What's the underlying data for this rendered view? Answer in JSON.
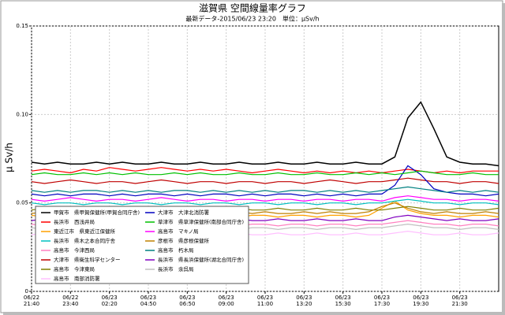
{
  "chart_data": {
    "type": "line",
    "title": "滋賀県 空間線量率グラフ",
    "subtitle": "最新データ-2015/06/23 23:20　単位：μSv/h",
    "y_label": "μ Sv/h",
    "categories": [
      "06/22\n21:40",
      null,
      null,
      "06/22\n23:40",
      null,
      null,
      "06/23\n02:20",
      null,
      null,
      "06/23\n04:50",
      null,
      null,
      "06/23\n06:50",
      null,
      null,
      "06/23\n09:00",
      null,
      null,
      "06/23\n11:00",
      null,
      null,
      "06/23\n13:20",
      null,
      null,
      "06/23\n15:30",
      null,
      null,
      "06/23\n17:30",
      null,
      null,
      "06/23\n19:30",
      null,
      null,
      "06/23\n21:30",
      null,
      null,
      null
    ],
    "ylim": [
      0,
      0.15
    ],
    "yticks": [
      0,
      0.05,
      {
        "value": 0.1,
        "label": "0.10"
      },
      0.15
    ],
    "grid": true,
    "series": [
      {
        "name": "甲賀市　県甲賀保健所(甲賀合同庁舎)",
        "color": "#000000",
        "values": [
          0.073,
          0.072,
          0.073,
          0.072,
          0.072,
          0.073,
          0.072,
          0.073,
          0.072,
          0.072,
          0.073,
          0.072,
          0.072,
          0.073,
          0.072,
          0.072,
          0.073,
          0.072,
          0.072,
          0.073,
          0.072,
          0.072,
          0.073,
          0.072,
          0.072,
          0.073,
          0.072,
          0.072,
          0.076,
          0.098,
          0.107,
          0.092,
          0.076,
          0.073,
          0.072,
          0.072,
          0.071
        ]
      },
      {
        "name": "長浜市　西浅井局",
        "color": "#ff0000",
        "values": [
          0.068,
          0.069,
          0.068,
          0.067,
          0.069,
          0.068,
          0.07,
          0.069,
          0.068,
          0.069,
          0.07,
          0.069,
          0.068,
          0.069,
          0.068,
          0.069,
          0.068,
          0.067,
          0.068,
          0.069,
          0.068,
          0.067,
          0.068,
          0.067,
          0.068,
          0.067,
          0.068,
          0.067,
          0.068,
          0.069,
          0.068,
          0.067,
          0.068,
          0.067,
          0.068,
          0.068,
          0.068
        ]
      },
      {
        "name": "東近江市　県東近江保健所",
        "color": "#ffa000",
        "values": [
          0.043,
          0.042,
          0.043,
          0.043,
          0.042,
          0.043,
          0.043,
          0.042,
          0.043,
          0.043,
          0.042,
          0.043,
          0.043,
          0.042,
          0.043,
          0.043,
          0.042,
          0.043,
          0.043,
          0.042,
          0.043,
          0.043,
          0.042,
          0.043,
          0.043,
          0.042,
          0.043,
          0.047,
          0.051,
          0.046,
          0.044,
          0.043,
          0.043,
          0.042,
          0.043,
          0.043,
          0.042
        ]
      },
      {
        "name": "長浜市　県木之本合同庁舎",
        "color": "#00c0c0",
        "values": [
          0.05,
          0.049,
          0.05,
          0.05,
          0.049,
          0.05,
          0.05,
          0.049,
          0.05,
          0.05,
          0.049,
          0.05,
          0.05,
          0.049,
          0.05,
          0.05,
          0.049,
          0.05,
          0.05,
          0.049,
          0.05,
          0.05,
          0.049,
          0.05,
          0.05,
          0.049,
          0.05,
          0.05,
          0.051,
          0.052,
          0.051,
          0.05,
          0.05,
          0.049,
          0.05,
          0.05,
          0.049
        ]
      },
      {
        "name": "高島市　今津西局",
        "color": "#ff80c0",
        "values": [
          0.038,
          0.037,
          0.038,
          0.038,
          0.037,
          0.038,
          0.038,
          0.037,
          0.038,
          0.038,
          0.037,
          0.038,
          0.038,
          0.037,
          0.038,
          0.038,
          0.037,
          0.038,
          0.038,
          0.037,
          0.038,
          0.038,
          0.037,
          0.038,
          0.038,
          0.037,
          0.038,
          0.038,
          0.039,
          0.04,
          0.039,
          0.038,
          0.038,
          0.037,
          0.038,
          0.038,
          0.037
        ]
      },
      {
        "name": "大津市　県衛生科学センター",
        "color": "#c00000",
        "values": [
          0.062,
          0.061,
          0.062,
          0.063,
          0.062,
          0.061,
          0.062,
          0.062,
          0.061,
          0.062,
          0.063,
          0.062,
          0.061,
          0.062,
          0.062,
          0.061,
          0.062,
          0.062,
          0.061,
          0.062,
          0.062,
          0.061,
          0.062,
          0.063,
          0.062,
          0.061,
          0.062,
          0.062,
          0.063,
          0.064,
          0.063,
          0.062,
          0.062,
          0.061,
          0.062,
          0.062,
          0.061
        ]
      },
      {
        "name": "高島市　今津東局",
        "color": "#808000",
        "values": [
          0.046,
          0.047,
          0.046,
          0.046,
          0.047,
          0.046,
          0.046,
          0.047,
          0.046,
          0.046,
          0.047,
          0.046,
          0.046,
          0.047,
          0.046,
          0.046,
          0.047,
          0.046,
          0.046,
          0.047,
          0.046,
          0.046,
          0.047,
          0.046,
          0.046,
          0.047,
          0.046,
          0.046,
          0.047,
          0.048,
          0.047,
          0.046,
          0.046,
          0.047,
          0.046,
          0.046,
          0.047
        ]
      },
      {
        "name": "高島市　南部消防署",
        "color": "#ffc0ff",
        "values": [
          0.032,
          0.033,
          0.032,
          0.032,
          0.033,
          0.032,
          0.032,
          0.033,
          0.032,
          0.032,
          0.033,
          0.032,
          0.032,
          0.033,
          0.032,
          0.032,
          0.033,
          0.032,
          0.032,
          0.033,
          0.032,
          0.032,
          0.033,
          0.032,
          0.032,
          0.033,
          0.032,
          0.032,
          0.033,
          0.034,
          0.033,
          0.032,
          0.032,
          0.033,
          0.032,
          0.032,
          0.033
        ]
      },
      {
        "name": "大津市　大津北消防署",
        "color": "#0000c0",
        "values": [
          0.055,
          0.054,
          0.055,
          0.054,
          0.055,
          0.055,
          0.054,
          0.055,
          0.054,
          0.055,
          0.055,
          0.054,
          0.055,
          0.054,
          0.055,
          0.055,
          0.054,
          0.055,
          0.054,
          0.055,
          0.055,
          0.054,
          0.055,
          0.054,
          0.055,
          0.054,
          0.055,
          0.055,
          0.06,
          0.071,
          0.066,
          0.058,
          0.056,
          0.055,
          0.055,
          0.054,
          0.055
        ]
      },
      {
        "name": "草津市　県草津保健所(南部合同庁舎)",
        "color": "#00c000",
        "values": [
          0.066,
          0.067,
          0.066,
          0.066,
          0.067,
          0.066,
          0.067,
          0.066,
          0.067,
          0.066,
          0.066,
          0.067,
          0.066,
          0.067,
          0.066,
          0.066,
          0.067,
          0.066,
          0.066,
          0.067,
          0.066,
          0.066,
          0.067,
          0.066,
          0.066,
          0.067,
          0.066,
          0.067,
          0.066,
          0.067,
          0.068,
          0.067,
          0.066,
          0.066,
          0.067,
          0.066,
          0.066
        ]
      },
      {
        "name": "高島市　マキノ局",
        "color": "#ff00ff",
        "values": [
          0.052,
          0.051,
          0.052,
          0.053,
          0.052,
          0.051,
          0.052,
          0.052,
          0.051,
          0.052,
          0.053,
          0.052,
          0.051,
          0.052,
          0.052,
          0.051,
          0.052,
          0.052,
          0.051,
          0.052,
          0.052,
          0.051,
          0.052,
          0.052,
          0.051,
          0.052,
          0.052,
          0.051,
          0.053,
          0.054,
          0.053,
          0.052,
          0.052,
          0.051,
          0.052,
          0.052,
          0.051
        ]
      },
      {
        "name": "彦根市　県彦根保健所",
        "color": "#c08000",
        "values": [
          0.044,
          0.045,
          0.044,
          0.045,
          0.044,
          0.044,
          0.045,
          0.044,
          0.045,
          0.044,
          0.044,
          0.045,
          0.044,
          0.045,
          0.044,
          0.044,
          0.045,
          0.044,
          0.045,
          0.044,
          0.044,
          0.045,
          0.044,
          0.045,
          0.044,
          0.044,
          0.045,
          0.048,
          0.05,
          0.047,
          0.045,
          0.044,
          0.045,
          0.044,
          0.044,
          0.045,
          0.044
        ]
      },
      {
        "name": "高島市　朽木局",
        "color": "#008080",
        "values": [
          0.057,
          0.056,
          0.057,
          0.056,
          0.057,
          0.057,
          0.056,
          0.057,
          0.056,
          0.057,
          0.056,
          0.057,
          0.057,
          0.056,
          0.057,
          0.056,
          0.057,
          0.056,
          0.057,
          0.056,
          0.057,
          0.057,
          0.056,
          0.057,
          0.056,
          0.057,
          0.056,
          0.057,
          0.058,
          0.059,
          0.058,
          0.057,
          0.056,
          0.057,
          0.056,
          0.057,
          0.056
        ]
      },
      {
        "name": "長浜市　県長浜保健所(湖北合同庁舎)",
        "color": "#8000c0",
        "values": [
          0.04,
          0.041,
          0.04,
          0.04,
          0.041,
          0.04,
          0.04,
          0.041,
          0.04,
          0.04,
          0.041,
          0.04,
          0.04,
          0.041,
          0.04,
          0.04,
          0.041,
          0.04,
          0.04,
          0.041,
          0.04,
          0.04,
          0.041,
          0.04,
          0.04,
          0.041,
          0.04,
          0.04,
          0.042,
          0.043,
          0.042,
          0.041,
          0.04,
          0.041,
          0.04,
          0.04,
          0.041
        ]
      },
      {
        "name": "長浜市　余呉局",
        "color": "#c0c0c0",
        "values": [
          0.036,
          0.035,
          0.036,
          0.036,
          0.035,
          0.036,
          0.036,
          0.035,
          0.036,
          0.036,
          0.035,
          0.036,
          0.036,
          0.035,
          0.036,
          0.036,
          0.035,
          0.036,
          0.036,
          0.035,
          0.036,
          0.036,
          0.035,
          0.036,
          0.036,
          0.035,
          0.036,
          0.036,
          0.037,
          0.038,
          0.037,
          0.036,
          0.036,
          0.035,
          0.036,
          0.036,
          0.035
        ]
      }
    ]
  }
}
